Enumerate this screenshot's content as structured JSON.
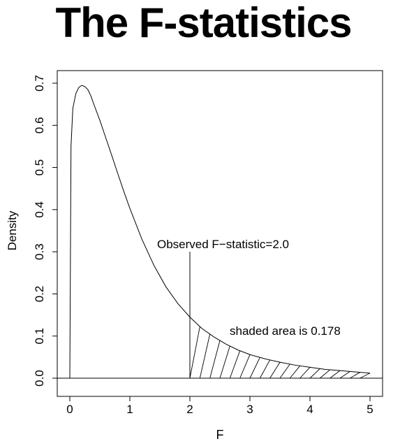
{
  "page": {
    "title": "The F-statistics"
  },
  "chart_data": {
    "type": "line",
    "distribution": "F",
    "xlabel": "F",
    "ylabel": "Density",
    "xlim": [
      0,
      5
    ],
    "ylim": [
      0,
      0.7
    ],
    "x_ticks": [
      0,
      1,
      2,
      3,
      4,
      5
    ],
    "x_tick_labels": [
      "0",
      "1",
      "2",
      "3",
      "4",
      "5"
    ],
    "y_ticks": [
      0.0,
      0.1,
      0.2,
      0.3,
      0.4,
      0.5,
      0.6,
      0.7
    ],
    "y_tick_labels": [
      "0.0",
      "0.1",
      "0.2",
      "0.3",
      "0.4",
      "0.5",
      "0.6",
      "0.7"
    ],
    "grid": false,
    "series": [
      {
        "x": [
          0,
          0.02,
          0.05,
          0.1,
          0.15,
          0.2,
          0.25,
          0.3,
          0.35,
          0.4,
          0.5,
          0.6,
          0.7,
          0.8,
          0.9,
          1.0,
          1.2,
          1.4,
          1.6,
          1.8,
          2.0,
          2.2,
          2.4,
          2.6,
          2.8,
          3.0,
          3.25,
          3.5,
          3.75,
          4.0,
          4.25,
          4.5,
          4.75,
          5.0
        ],
        "y": [
          0.0,
          0.55,
          0.64,
          0.675,
          0.69,
          0.695,
          0.692,
          0.685,
          0.67,
          0.65,
          0.612,
          0.57,
          0.528,
          0.485,
          0.443,
          0.403,
          0.33,
          0.268,
          0.217,
          0.177,
          0.145,
          0.118,
          0.098,
          0.081,
          0.067,
          0.056,
          0.046,
          0.038,
          0.031,
          0.026,
          0.021,
          0.018,
          0.015,
          0.012
        ]
      }
    ],
    "observed": {
      "x": 2.0,
      "line_top_y": 0.3,
      "label": "Observed F−statistic=2.0"
    },
    "shaded_region": {
      "from": 2.0,
      "to": 5.0,
      "area": 0.178,
      "label": "shaded area is 0.178",
      "hatch_count": 18
    }
  }
}
